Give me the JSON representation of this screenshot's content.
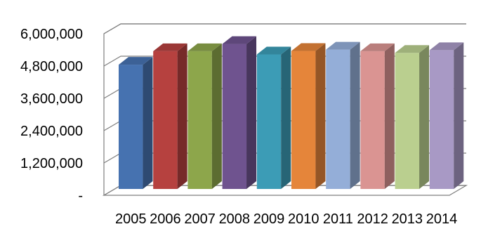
{
  "chart_data": {
    "type": "bar",
    "title": "",
    "xlabel": "",
    "ylabel": "",
    "categories": [
      "2005",
      "2006",
      "2007",
      "2008",
      "2009",
      "2010",
      "2011",
      "2012",
      "2013",
      "2014"
    ],
    "values": [
      4850000,
      5350000,
      5350000,
      5620000,
      5230000,
      5360000,
      5410000,
      5350000,
      5290000,
      5390000
    ],
    "ylim": [
      0,
      6000000
    ],
    "yticks": [
      0,
      1200000,
      2400000,
      3600000,
      4800000,
      6000000
    ],
    "ytick_labels": [
      "-",
      "1,200,000",
      "2,400,000",
      "3,600,000",
      "4,800,000",
      "6,000,000"
    ],
    "grid": true,
    "legend": "none",
    "style": "3d-column",
    "colors": [
      "#4672B0",
      "#B6413F",
      "#8DA64B",
      "#6F538F",
      "#3C9CB6",
      "#E5853A",
      "#94AED8",
      "#DA9492",
      "#BACF8F",
      "#A899C5"
    ]
  }
}
